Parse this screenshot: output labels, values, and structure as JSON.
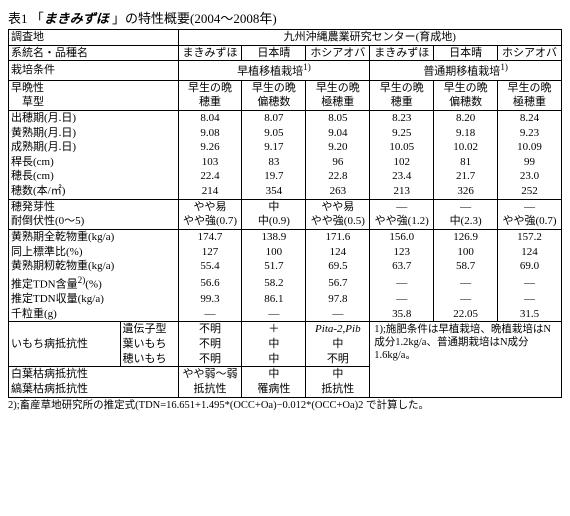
{
  "title_prefix": "表1 「",
  "title_em": "まきみずほ",
  "title_suffix": " 」の特性概要(2004〜2008年)",
  "header": {
    "survey_site": "調査地",
    "center": "九州沖縄農業研究センター(育成地)",
    "lineage": "系統名・品種名",
    "v1": "まきみずほ",
    "v2": "日本晴",
    "v3": "ホシアオバ",
    "v4": "まきみずほ",
    "v5": "日本晴",
    "v6": "ホシアオバ",
    "cult_cond": "栽培条件",
    "cond_early": "早植移植栽培",
    "cond_normal": "普通期移植栽培",
    "sup1": "1)",
    "sup1b": "1)"
  },
  "rows": {
    "r1": {
      "l": "早晩性",
      "a": "早生の晩",
      "b": "早生の晩",
      "c": "早生の晩",
      "d": "早生の晩",
      "e": "早生の晩",
      "f": "早生の晩"
    },
    "r2": {
      "l": "　草型",
      "a": "穂重",
      "b": "偏穂数",
      "c": "極穂重",
      "d": "穂重",
      "e": "偏穂数",
      "f": "極穂重"
    },
    "r3": {
      "l": "出穂期(月.日)",
      "a": "8.04",
      "b": "8.07",
      "c": "8.05",
      "d": "8.23",
      "e": "8.20",
      "f": "8.24"
    },
    "r4": {
      "l": "黄熟期(月.日)",
      "a": "9.08",
      "b": "9.05",
      "c": "9.04",
      "d": "9.25",
      "e": "9.18",
      "f": "9.23"
    },
    "r5": {
      "l": "成熟期(月.日)",
      "a": "9.26",
      "b": "9.17",
      "c": "9.20",
      "d": "10.05",
      "e": "10.02",
      "f": "10.09"
    },
    "r6": {
      "l": "稈長(cm)",
      "a": "103",
      "b": "83",
      "c": "96",
      "d": "102",
      "e": "81",
      "f": "99"
    },
    "r7": {
      "l": "穂長(cm)",
      "a": "22.4",
      "b": "19.7",
      "c": "22.8",
      "d": "23.4",
      "e": "21.7",
      "f": "23.0"
    },
    "r8": {
      "l": "穂数(本/㎡)",
      "a": "214",
      "b": "354",
      "c": "263",
      "d": "213",
      "e": "326",
      "f": "252"
    },
    "r9": {
      "l": "穂発芽性",
      "a": "やや易",
      "b": "中",
      "c": "やや易",
      "d": "—",
      "e": "—",
      "f": "—"
    },
    "r10": {
      "l": "耐倒伏性(0〜5)",
      "a": "やや強(0.7)",
      "b": "中(0.9)",
      "c": "やや強(0.5)",
      "d": "やや強(1.2)",
      "e": "中(2.3)",
      "f": "やや強(0.7)"
    },
    "r11": {
      "l": "黄熟期全乾物重(kg/a)",
      "a": "174.7",
      "b": "138.9",
      "c": "171.6",
      "d": "156.0",
      "e": "126.9",
      "f": "157.2"
    },
    "r12": {
      "l": "同上標準比(%)",
      "a": "127",
      "b": "100",
      "c": "124",
      "d": "123",
      "e": "100",
      "f": "124"
    },
    "r13": {
      "l": "黄熟期籾乾物重(kg/a)",
      "a": "55.4",
      "b": "51.7",
      "c": "69.5",
      "d": "63.7",
      "e": "58.7",
      "f": "69.0"
    },
    "r14": {
      "l": "推定TDN含量",
      "sup": "2)",
      "l2": "(%)",
      "a": "56.6",
      "b": "58.2",
      "c": "56.7",
      "d": "—",
      "e": "—",
      "f": "—"
    },
    "r15": {
      "l": "推定TDN収量(kg/a)",
      "a": "99.3",
      "b": "86.1",
      "c": "97.8",
      "d": "—",
      "e": "—",
      "f": "—"
    },
    "r16": {
      "l": "千粒重(g)",
      "a": "—",
      "b": "—",
      "c": "—",
      "d": "35.8",
      "e": "22.05",
      "f": "31.5"
    },
    "blast": "いもち病抵抗性",
    "r17": {
      "l": "遺伝子型",
      "a": "不明",
      "b": "＋",
      "c": "Pita-2,Pib",
      "c_italic": true
    },
    "r18": {
      "l": "葉いもち",
      "a": "不明",
      "b": "中",
      "c": "中"
    },
    "r19": {
      "l": "穂いもち",
      "a": "不明",
      "b": "中",
      "c": "不明"
    },
    "r20": {
      "l": "白葉枯病抵抗性",
      "a": "やや弱〜弱",
      "b": "中",
      "c": "中"
    },
    "r21": {
      "l": "縞葉枯病抵抗性",
      "a": "抵抗性",
      "b": "罹病性",
      "c": "抵抗性"
    }
  },
  "note_right": "1);施肥条件は早植栽培、晩植栽培はN成分1.2kg/a、普通期栽培はN成分1.6kg/a。",
  "footnote": "2);畜産草地研究所の推定式(TDN=16.651+1.495*(OCC+Oa)−0.012*(OCC+Oa)2 で計算した。"
}
